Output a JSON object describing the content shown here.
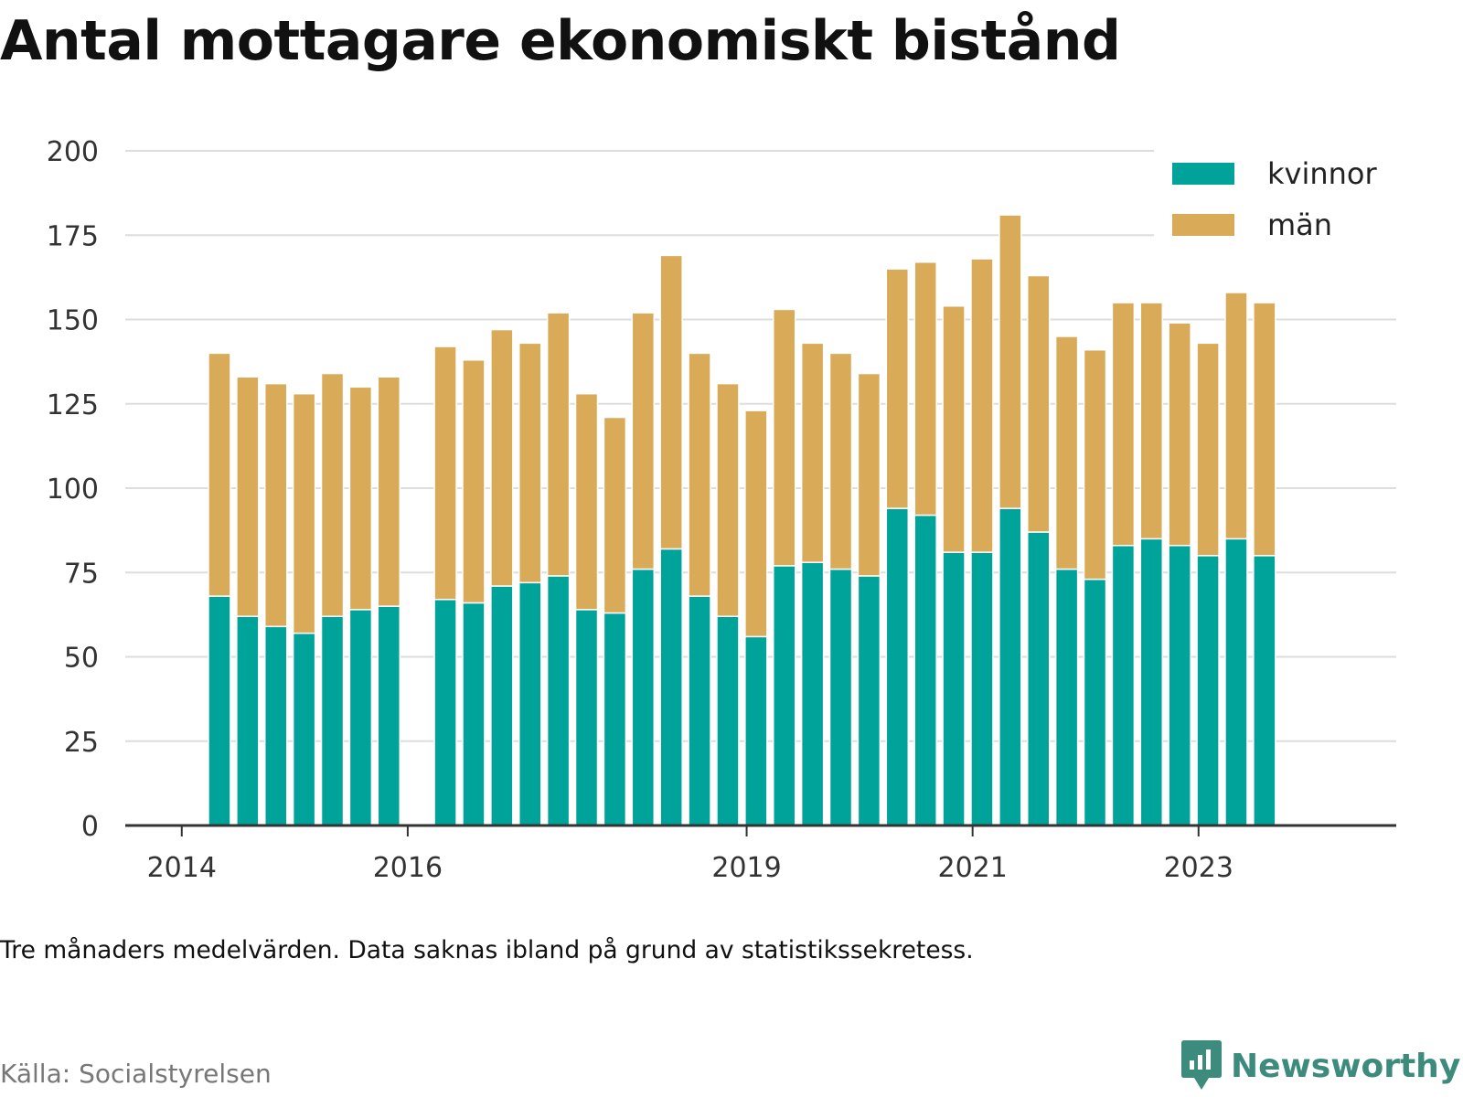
{
  "title": "Antal mottagare ekonomiskt bistånd",
  "note": "Tre månaders medelvärden. Data saknas ibland på grund av statistikssekretess.",
  "source": "Källa: Socialstyrelsen",
  "logo": {
    "text": "Newsworthy",
    "icon": "newsworthy-logo-icon",
    "color": "#3d8b7d"
  },
  "chart_data": {
    "type": "bar",
    "stacked": true,
    "ylim": [
      0,
      200
    ],
    "yticks": [
      0,
      25,
      50,
      75,
      100,
      125,
      150,
      175,
      200
    ],
    "xlim": [
      "2013-07-01",
      "2024-10-01"
    ],
    "xticks": [
      {
        "label": "2014",
        "date": "2014-01-01"
      },
      {
        "label": "2016",
        "date": "2016-01-01"
      },
      {
        "label": "2019",
        "date": "2019-01-01"
      },
      {
        "label": "2021",
        "date": "2021-01-01"
      },
      {
        "label": "2023",
        "date": "2023-01-01"
      }
    ],
    "grid": true,
    "legend_position": "top-right",
    "x": [
      "2014-05",
      "2014-08",
      "2014-11",
      "2015-02",
      "2015-05",
      "2015-08",
      "2015-11",
      "2016-05",
      "2016-08",
      "2016-11",
      "2017-02",
      "2017-05",
      "2017-08",
      "2017-11",
      "2018-02",
      "2018-05",
      "2018-08",
      "2018-11",
      "2019-02",
      "2019-05",
      "2019-08",
      "2019-11",
      "2020-02",
      "2020-05",
      "2020-08",
      "2020-11",
      "2021-02",
      "2021-05",
      "2021-08",
      "2021-11",
      "2022-02",
      "2022-05",
      "2022-08",
      "2022-11",
      "2023-02",
      "2023-05",
      "2023-08"
    ],
    "series": [
      {
        "name": "kvinnor",
        "color": "#00a399",
        "values": [
          68,
          62,
          59,
          57,
          62,
          64,
          65,
          67,
          66,
          71,
          72,
          74,
          64,
          63,
          76,
          82,
          68,
          62,
          56,
          77,
          78,
          76,
          74,
          94,
          92,
          81,
          81,
          94,
          87,
          76,
          73,
          83,
          85,
          83,
          80,
          85,
          80
        ]
      },
      {
        "name": "män",
        "color": "#d9ab58",
        "values": [
          72,
          71,
          72,
          71,
          72,
          66,
          68,
          75,
          72,
          76,
          71,
          78,
          64,
          58,
          76,
          87,
          72,
          69,
          67,
          76,
          65,
          64,
          60,
          71,
          75,
          73,
          87,
          87,
          76,
          69,
          68,
          72,
          70,
          66,
          63,
          73,
          75
        ]
      }
    ]
  }
}
